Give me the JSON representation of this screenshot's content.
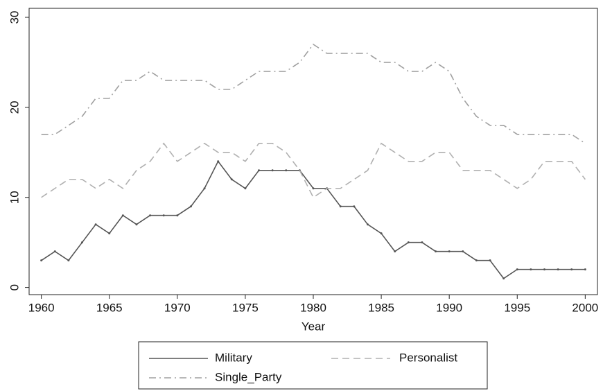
{
  "chart_data": {
    "type": "line",
    "xlabel": "Year",
    "x": [
      1960,
      1961,
      1962,
      1963,
      1964,
      1965,
      1966,
      1967,
      1968,
      1969,
      1970,
      1971,
      1972,
      1973,
      1974,
      1975,
      1976,
      1977,
      1978,
      1979,
      1980,
      1981,
      1982,
      1983,
      1984,
      1985,
      1986,
      1987,
      1988,
      1989,
      1990,
      1991,
      1992,
      1993,
      1994,
      1995,
      1996,
      1997,
      1998,
      1999,
      2000
    ],
    "series": [
      {
        "name": "Military",
        "color": "#555555",
        "line_style": "solid",
        "markers": true,
        "values": [
          3,
          4,
          3,
          5,
          7,
          6,
          8,
          7,
          8,
          8,
          8,
          9,
          11,
          14,
          12,
          11,
          13,
          13,
          13,
          13,
          11,
          11,
          9,
          9,
          7,
          6,
          4,
          5,
          5,
          4,
          4,
          4,
          3,
          3,
          1,
          2,
          2,
          2,
          2,
          2,
          2
        ]
      },
      {
        "name": "Personalist",
        "color": "#b0b0b0",
        "line_style": "dashed",
        "markers": false,
        "values": [
          10,
          11,
          12,
          12,
          11,
          12,
          11,
          13,
          14,
          16,
          14,
          15,
          16,
          15,
          15,
          14,
          16,
          16,
          15,
          13,
          10,
          11,
          11,
          12,
          13,
          16,
          15,
          14,
          14,
          15,
          15,
          13,
          13,
          13,
          12,
          11,
          12,
          14,
          14,
          14,
          12
        ]
      },
      {
        "name": "Single_Party",
        "color": "#a0a0a0",
        "line_style": "dashdot",
        "markers": false,
        "values": [
          17,
          17,
          18,
          19,
          21,
          21,
          23,
          23,
          24,
          23,
          23,
          23,
          23,
          22,
          22,
          23,
          24,
          24,
          24,
          25,
          27,
          26,
          26,
          26,
          26,
          25,
          25,
          24,
          24,
          25,
          24,
          21,
          19,
          18,
          18,
          17,
          17,
          17,
          17,
          17,
          16
        ]
      }
    ],
    "xlim": [
      1959.1,
      2000.9
    ],
    "xticks": [
      1960,
      1965,
      1970,
      1975,
      1980,
      1985,
      1990,
      1995,
      2000
    ],
    "ylim": [
      -0.8,
      31
    ],
    "yticks": [
      0,
      10,
      20,
      30
    ],
    "grid": false,
    "legend": "bottom"
  }
}
